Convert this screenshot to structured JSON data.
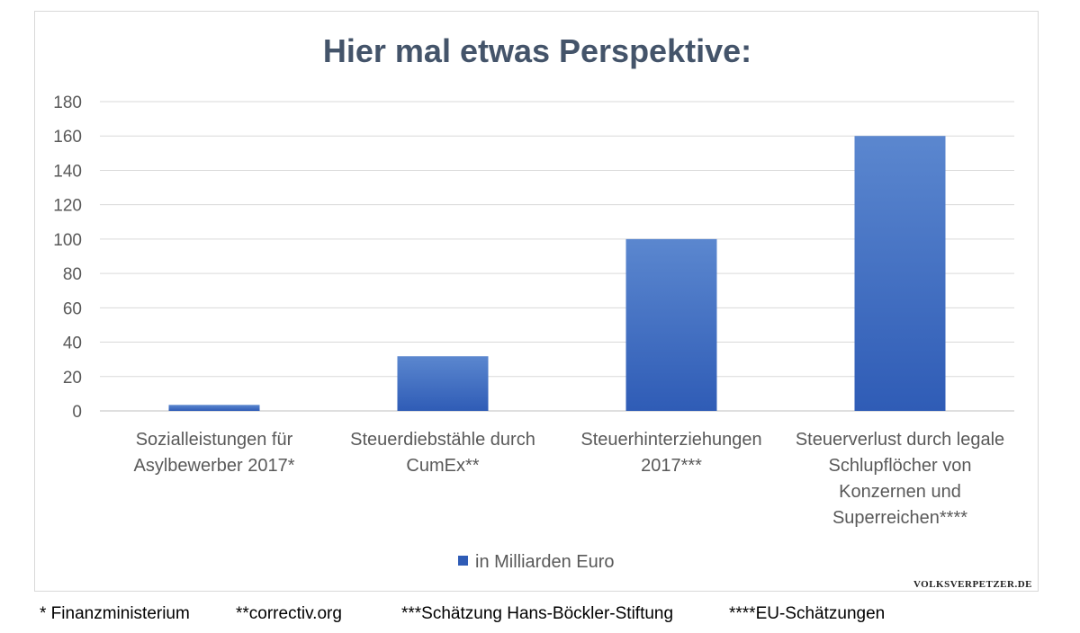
{
  "chart_data": {
    "type": "bar",
    "title": "Hier mal etwas Perspektive:",
    "categories": [
      [
        "Sozialleistungen für",
        "Asylbewerber 2017*"
      ],
      [
        "Steuerdiebstähle durch",
        "CumEx**"
      ],
      [
        "Steuerhinterziehungen",
        "2017***"
      ],
      [
        "Steuerverlust durch legale",
        "Schlupflöcher von",
        "Konzernen und",
        "Superreichen****"
      ]
    ],
    "series": [
      {
        "name": "in Milliarden Euro",
        "values": [
          3.5,
          31.8,
          100,
          160
        ]
      }
    ],
    "ylim": [
      0,
      180
    ],
    "yticks": [
      0,
      20,
      40,
      60,
      80,
      100,
      120,
      140,
      160,
      180
    ],
    "grid": true,
    "legend_position": "bottom",
    "colors": {
      "bar_top": "#5b87cf",
      "bar_bottom": "#2f5cb6",
      "grid": "#d9d9d9",
      "title": "#44546a",
      "axis_text": "#595959"
    }
  },
  "watermark": "VOLKSVERPETZER.DE",
  "footnotes": [
    "* Finanzministerium",
    "**correctiv.org",
    "***Schätzung Hans-Böckler-Stiftung",
    "****EU-Schätzungen"
  ]
}
